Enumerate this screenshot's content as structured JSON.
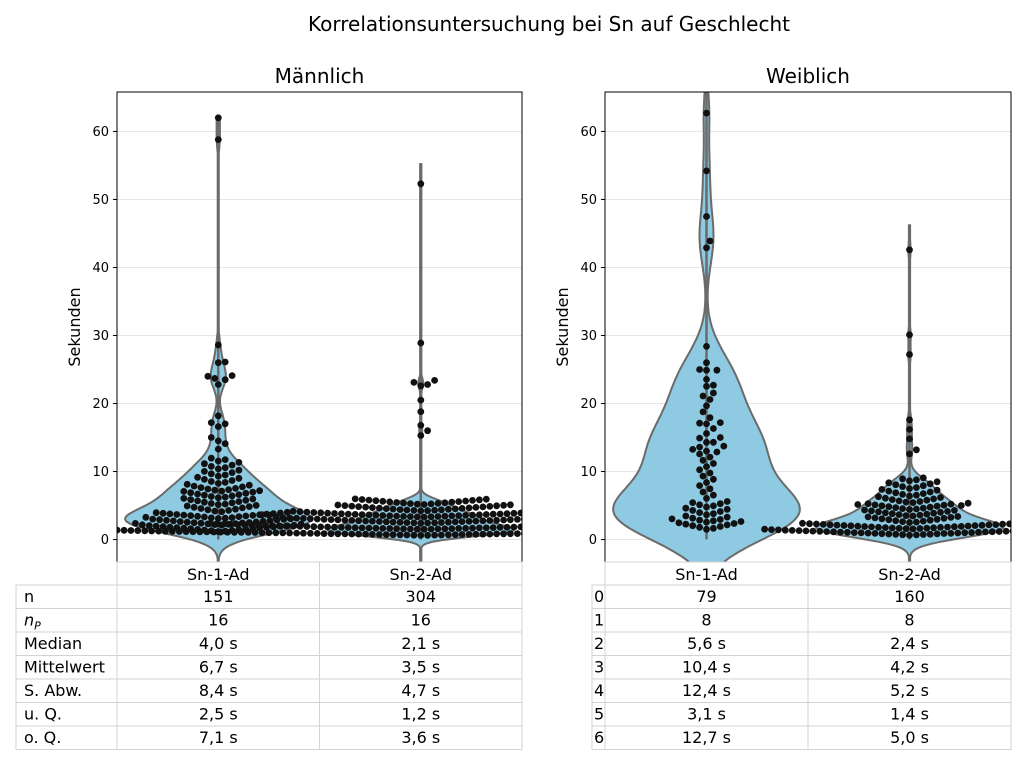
{
  "suptitle": "Korrelationsuntersuchung bei Sn auf Geschlecht",
  "colors": {
    "violin_fill": "#8ecae2",
    "violin_edge": "#6b6b6b",
    "point": "#111111",
    "grid": "#e6e6e6",
    "table_border": "#d3d3d3"
  },
  "chart_data": [
    {
      "type": "violin",
      "title": "Männlich",
      "ylabel": "Sekunden",
      "ylim": [
        -3.3,
        65.8
      ],
      "yticks": [
        0,
        10,
        20,
        30,
        40,
        50,
        60
      ],
      "grid": true,
      "categories": [
        "Sn-1-Ad",
        "Sn-2-Ad"
      ],
      "series": [
        {
          "category": "Sn-1-Ad",
          "n": 151,
          "max": 62.0,
          "outliers": [
            62.0,
            58.8,
            28.6,
            26.1,
            26.0,
            24.1,
            24.0,
            23.7,
            23.5,
            22.8,
            18.2,
            17.2,
            17.0,
            16.6,
            15.0,
            14.5,
            14.1,
            13.3
          ]
        },
        {
          "category": "Sn-2-Ad",
          "n": 304,
          "max": 55.2,
          "outliers": [
            52.3,
            28.9,
            23.4,
            23.1,
            22.8,
            22.6,
            20.5,
            18.8,
            16.8,
            16.0,
            15.3
          ]
        }
      ],
      "table": {
        "row_labels": [
          "n",
          "n_P",
          "Median",
          "Mittelwert",
          "S. Abw.",
          "u. Q.",
          "o. Q."
        ],
        "rows": [
          [
            "151",
            "304"
          ],
          [
            "16",
            "16"
          ],
          [
            "4,0 s",
            "2,1 s"
          ],
          [
            "6,7 s",
            "3,5 s"
          ],
          [
            "8,4 s",
            "4,7 s"
          ],
          [
            "2,5 s",
            "1,2 s"
          ],
          [
            "7,1 s",
            "3,6 s"
          ]
        ]
      }
    },
    {
      "type": "violin",
      "title": "Weiblich",
      "ylabel": "Sekunden",
      "ylim": [
        -3.3,
        65.8
      ],
      "yticks": [
        0,
        10,
        20,
        30,
        40,
        50,
        60
      ],
      "grid": true,
      "categories": [
        "Sn-1-Ad",
        "Sn-2-Ad"
      ],
      "series": [
        {
          "category": "Sn-1-Ad",
          "n": 79,
          "max": 66.0,
          "outliers": [
            62.7,
            54.2,
            47.5,
            43.9,
            42.9,
            28.4,
            26.0,
            25.0,
            24.9,
            24.9,
            22.7,
            21.1,
            17.2,
            17.0,
            15.0,
            14.3,
            13.6,
            13.0
          ]
        },
        {
          "category": "Sn-2-Ad",
          "n": 160,
          "max": 46.2,
          "outliers": [
            42.6,
            30.1,
            27.2,
            17.6,
            16.2,
            14.8,
            13.2,
            12.6
          ]
        }
      ],
      "table": {
        "row_labels": [
          "0",
          "1",
          "2",
          "3",
          "4",
          "5",
          "6"
        ],
        "rows": [
          [
            "79",
            "160"
          ],
          [
            "8",
            "8"
          ],
          [
            "5,6 s",
            "2,4 s"
          ],
          [
            "10,4 s",
            "4,2 s"
          ],
          [
            "12,4 s",
            "5,2 s"
          ],
          [
            "3,1 s",
            "1,4 s"
          ],
          [
            "12,7 s",
            "5,0 s"
          ]
        ]
      }
    }
  ]
}
